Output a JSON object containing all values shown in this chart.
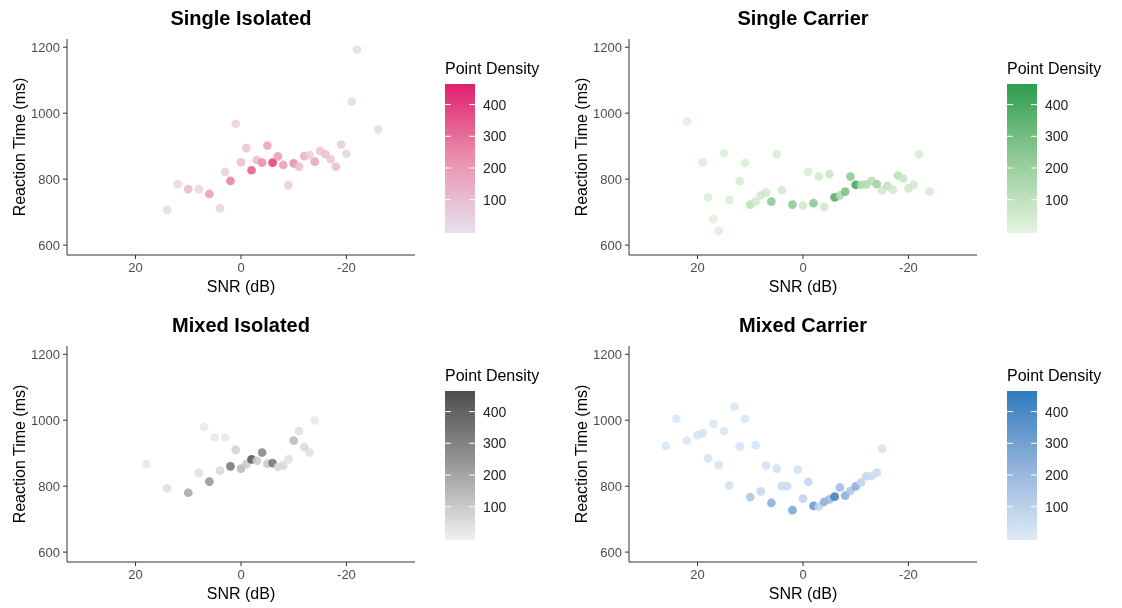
{
  "chart_data": [
    {
      "type": "scatter",
      "title": "Single Isolated",
      "xlabel": "SNR (dB)",
      "ylabel": "Reaction Time (ms)",
      "clabel": "Point Density",
      "xlim": [
        33,
        -33
      ],
      "xticks": [
        20,
        0,
        -20
      ],
      "ylim": [
        570,
        1225
      ],
      "yticks": [
        600,
        800,
        1000,
        1200
      ],
      "clim": [
        -5,
        465
      ],
      "cticks": [
        100,
        200,
        300,
        400
      ],
      "grid": false,
      "marker": "circle",
      "series": [
        {
          "x": [
            14,
            12,
            10,
            8,
            6,
            4,
            3,
            2,
            1,
            0,
            -1,
            -2,
            -3,
            -4,
            -5,
            -6,
            -7,
            -8,
            -9,
            -10,
            -11,
            -12,
            -13,
            -14,
            -15,
            -16,
            -17,
            -18,
            -19,
            -20,
            -21,
            -22,
            -26
          ],
          "values": [
            707,
            785,
            770,
            770,
            755,
            712,
            822,
            795,
            968,
            851,
            894,
            827,
            858,
            850,
            902,
            850,
            869,
            843,
            782,
            848,
            838,
            870,
            873,
            853,
            886,
            876,
            861,
            838,
            905,
            877,
            1035,
            1193,
            951
          ],
          "cvalues": [
            20,
            30,
            120,
            40,
            200,
            40,
            50,
            280,
            40,
            100,
            80,
            370,
            120,
            250,
            180,
            430,
            200,
            200,
            60,
            250,
            100,
            150,
            60,
            180,
            80,
            100,
            80,
            100,
            60,
            40,
            20,
            20,
            20
          ]
        }
      ]
    },
    {
      "type": "scatter",
      "title": "Single Carrier",
      "xlabel": "SNR (dB)",
      "ylabel": "Reaction Time (ms)",
      "clabel": "Point Density",
      "xlim": [
        33,
        -33
      ],
      "xticks": [
        20,
        0,
        -20
      ],
      "ylim": [
        570,
        1225
      ],
      "yticks": [
        600,
        800,
        1000,
        1200
      ],
      "clim": [
        -5,
        465
      ],
      "cticks": [
        100,
        200,
        300,
        400
      ],
      "grid": false,
      "marker": "circle",
      "series": [
        {
          "x": [
            22,
            19,
            18,
            17,
            16,
            15,
            14,
            12,
            11,
            10,
            9,
            8,
            7,
            6,
            5,
            4,
            2,
            0,
            -1,
            -2,
            -3,
            -4,
            -5,
            -6,
            -7,
            -8,
            -9,
            -10,
            -11,
            -12,
            -13,
            -14,
            -15,
            -16,
            -17,
            -18,
            -19,
            -20,
            -21,
            -22,
            -24
          ],
          "values": [
            975,
            851,
            745,
            679,
            643,
            878,
            737,
            794,
            849,
            723,
            732,
            751,
            759,
            732,
            875,
            767,
            723,
            720,
            823,
            727,
            808,
            716,
            815,
            745,
            751,
            762,
            808,
            783,
            783,
            784,
            795,
            785,
            766,
            780,
            768,
            811,
            802,
            772,
            783,
            875,
            762
          ],
          "cvalues": [
            20,
            30,
            30,
            20,
            20,
            30,
            40,
            40,
            30,
            120,
            60,
            60,
            60,
            250,
            40,
            60,
            250,
            60,
            40,
            250,
            60,
            60,
            80,
            400,
            150,
            300,
            250,
            450,
            150,
            150,
            120,
            200,
            60,
            100,
            60,
            120,
            80,
            60,
            60,
            40,
            40
          ]
        }
      ]
    },
    {
      "type": "scatter",
      "title": "Mixed Isolated",
      "xlabel": "SNR (dB)",
      "ylabel": "Reaction Time (ms)",
      "clabel": "Point Density",
      "xlim": [
        33,
        -33
      ],
      "xticks": [
        20,
        0,
        -20
      ],
      "ylim": [
        570,
        1225
      ],
      "yticks": [
        600,
        800,
        1000,
        1200
      ],
      "clim": [
        -5,
        465
      ],
      "cticks": [
        100,
        200,
        300,
        400
      ],
      "grid": false,
      "marker": "circle",
      "series": [
        {
          "x": [
            18,
            14,
            10,
            8,
            7,
            6,
            5,
            4,
            3,
            2,
            1,
            0,
            -1,
            -2,
            -3,
            -4,
            -5,
            -6,
            -7,
            -8,
            -9,
            -10,
            -11,
            -12,
            -13,
            -14
          ],
          "values": [
            867,
            793,
            780,
            840,
            980,
            814,
            948,
            847,
            948,
            860,
            910,
            853,
            867,
            881,
            877,
            902,
            868,
            870,
            858,
            862,
            881,
            938,
            967,
            918,
            902,
            999
          ],
          "cvalues": [
            20,
            40,
            200,
            40,
            20,
            250,
            20,
            60,
            20,
            350,
            80,
            150,
            100,
            450,
            100,
            300,
            100,
            350,
            60,
            60,
            40,
            150,
            40,
            60,
            40,
            20
          ]
        }
      ]
    },
    {
      "type": "scatter",
      "title": "Mixed Carrier",
      "xlabel": "SNR (dB)",
      "ylabel": "Reaction Time (ms)",
      "clabel": "Point Density",
      "xlim": [
        33,
        -33
      ],
      "xticks": [
        20,
        0,
        -20
      ],
      "ylim": [
        570,
        1225
      ],
      "yticks": [
        600,
        800,
        1000,
        1200
      ],
      "clim": [
        -5,
        465
      ],
      "cticks": [
        100,
        200,
        300,
        400
      ],
      "grid": false,
      "marker": "circle",
      "series": [
        {
          "x": [
            26,
            24,
            22,
            20,
            19,
            18,
            17,
            16,
            15,
            14,
            13,
            12,
            11,
            10,
            9,
            8,
            7,
            6,
            5,
            4,
            3,
            2,
            1,
            0,
            -1,
            -2,
            -3,
            -4,
            -5,
            -6,
            -7,
            -8,
            -9,
            -10,
            -11,
            -12,
            -13,
            -14,
            -15
          ],
          "values": [
            922,
            1004,
            938,
            955,
            961,
            884,
            989,
            864,
            967,
            802,
            1041,
            920,
            1004,
            767,
            924,
            784,
            863,
            749,
            853,
            800,
            800,
            727,
            850,
            762,
            813,
            740,
            738,
            752,
            760,
            768,
            796,
            771,
            786,
            799,
            811,
            830,
            831,
            841,
            914
          ],
          "cvalues": [
            20,
            20,
            20,
            30,
            30,
            30,
            20,
            30,
            20,
            40,
            20,
            30,
            20,
            150,
            30,
            80,
            40,
            250,
            40,
            60,
            60,
            300,
            40,
            100,
            80,
            350,
            80,
            250,
            200,
            450,
            200,
            250,
            150,
            250,
            100,
            80,
            60,
            60,
            30
          ]
        }
      ]
    }
  ]
}
